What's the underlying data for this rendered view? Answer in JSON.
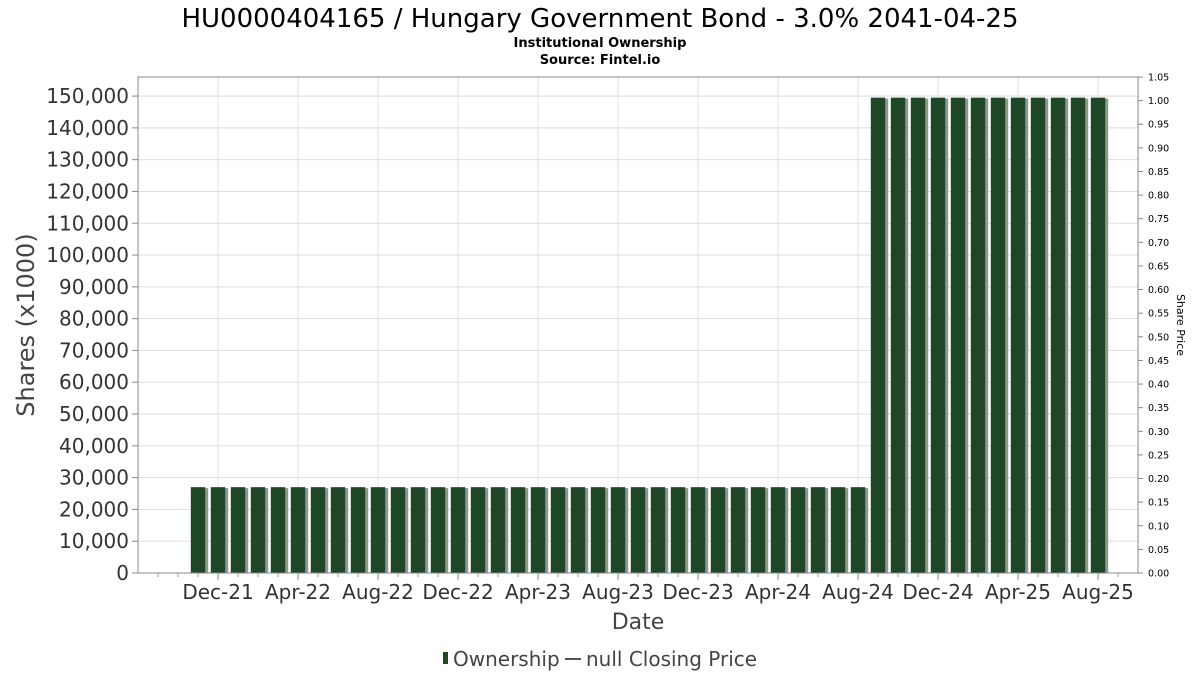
{
  "header": {
    "title": "HU0000404165 / Hungary Government Bond - 3.0% 2041-04-25",
    "subtitle": "Institutional Ownership",
    "source": "Source: Fintel.io"
  },
  "chart_data": {
    "type": "bar",
    "title": "HU0000404165 / Hungary Government Bond - 3.0% 2041-04-25",
    "xlabel": "Date",
    "ylabel": "Shares (x1000)",
    "y2label": "Share Price",
    "ylim": [
      0,
      156000
    ],
    "y2lim": [
      0,
      1.05
    ],
    "grid": true,
    "legend_position": "bottom",
    "yticks_left": [
      "0",
      "10,000",
      "20,000",
      "30,000",
      "40,000",
      "50,000",
      "60,000",
      "70,000",
      "80,000",
      "90,000",
      "100,000",
      "110,000",
      "120,000",
      "130,000",
      "140,000",
      "150,000"
    ],
    "yticks_right": [
      "0.00",
      "0.05",
      "0.10",
      "0.15",
      "0.20",
      "0.25",
      "0.30",
      "0.35",
      "0.40",
      "0.45",
      "0.50",
      "0.55",
      "0.60",
      "0.65",
      "0.70",
      "0.75",
      "0.80",
      "0.85",
      "0.90",
      "0.95",
      "1.00",
      "1.05"
    ],
    "xticks": [
      "Dec-21",
      "Apr-22",
      "Aug-22",
      "Dec-22",
      "Apr-23",
      "Aug-23",
      "Dec-23",
      "Apr-24",
      "Aug-24",
      "Dec-24",
      "Apr-25",
      "Aug-25"
    ],
    "colors": {
      "bar": "#1f4727",
      "bar_shadow": "#8a9a8c",
      "grid": "#dddddd",
      "frame": "#888888"
    },
    "legend": [
      {
        "label": "Ownership",
        "marker": "bar",
        "color": "#1f4727"
      },
      {
        "label": "null Closing Price",
        "marker": "line",
        "color": "#555555"
      }
    ],
    "series": [
      {
        "name": "Ownership",
        "dates": [
          "2021-11",
          "2021-12",
          "2022-01",
          "2022-02",
          "2022-03",
          "2022-04",
          "2022-05",
          "2022-06",
          "2022-07",
          "2022-08",
          "2022-09",
          "2022-10",
          "2022-11",
          "2022-12",
          "2023-01",
          "2023-02",
          "2023-03",
          "2023-04",
          "2023-05",
          "2023-06",
          "2023-07",
          "2023-08",
          "2023-09",
          "2023-10",
          "2023-11",
          "2023-12",
          "2024-01",
          "2024-02",
          "2024-03",
          "2024-04",
          "2024-05",
          "2024-06",
          "2024-07",
          "2024-08",
          "2024-09",
          "2024-10",
          "2024-11",
          "2024-12",
          "2025-01",
          "2025-02",
          "2025-03",
          "2025-04",
          "2025-05",
          "2025-06",
          "2025-07",
          "2025-08"
        ],
        "values": [
          27000,
          27000,
          27000,
          27000,
          27000,
          27000,
          27000,
          27000,
          27000,
          27000,
          27000,
          27000,
          27000,
          27000,
          27000,
          27000,
          27000,
          27000,
          27000,
          27000,
          27000,
          27000,
          27000,
          27000,
          27000,
          27000,
          27000,
          27000,
          27000,
          27000,
          27000,
          27000,
          27000,
          27000,
          149500,
          149500,
          149500,
          149500,
          149500,
          149500,
          149500,
          149500,
          149500,
          149500,
          149500,
          149500
        ]
      }
    ]
  }
}
